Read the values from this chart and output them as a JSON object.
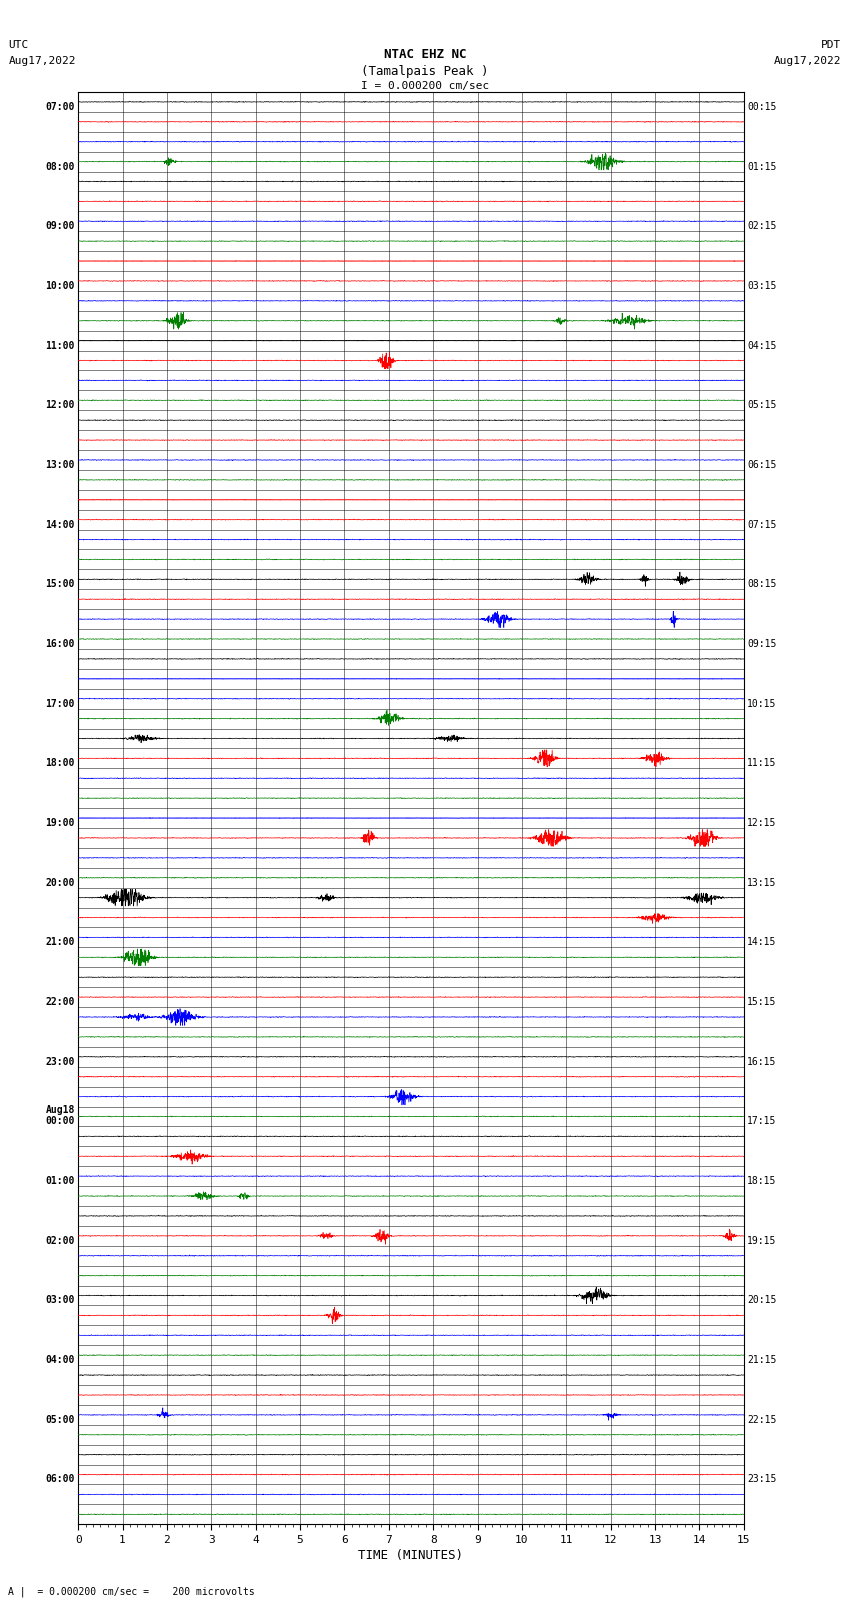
{
  "title_line1": "NTAC EHZ NC",
  "title_line2": "(Tamalpais Peak )",
  "title_line3": "I = 0.000200 cm/sec",
  "left_header_line1": "UTC",
  "left_header_line2": "Aug17,2022",
  "right_header_line1": "PDT",
  "right_header_line2": "Aug17,2022",
  "footer_text": "A |  = 0.000200 cm/sec =    200 microvolts",
  "xlabel": "TIME (MINUTES)",
  "utc_labels": [
    "07:00",
    "",
    "",
    "08:00",
    "",
    "",
    "09:00",
    "",
    "",
    "10:00",
    "",
    "",
    "11:00",
    "",
    "",
    "12:00",
    "",
    "",
    "13:00",
    "",
    "",
    "14:00",
    "",
    "",
    "15:00",
    "",
    "",
    "16:00",
    "",
    "",
    "17:00",
    "",
    "",
    "18:00",
    "",
    "",
    "19:00",
    "",
    "",
    "20:00",
    "",
    "",
    "21:00",
    "",
    "",
    "22:00",
    "",
    "",
    "23:00",
    "",
    "",
    "Aug18\n00:00",
    "",
    "",
    "01:00",
    "",
    "",
    "02:00",
    "",
    "",
    "03:00",
    "",
    "",
    "04:00",
    "",
    "",
    "05:00",
    "",
    "",
    "06:00",
    "",
    ""
  ],
  "pdt_labels": [
    "00:15",
    "",
    "",
    "01:15",
    "",
    "",
    "02:15",
    "",
    "",
    "03:15",
    "",
    "",
    "04:15",
    "",
    "",
    "05:15",
    "",
    "",
    "06:15",
    "",
    "",
    "07:15",
    "",
    "",
    "08:15",
    "",
    "",
    "09:15",
    "",
    "",
    "10:15",
    "",
    "",
    "11:15",
    "",
    "",
    "12:15",
    "",
    "",
    "13:15",
    "",
    "",
    "14:15",
    "",
    "",
    "15:15",
    "",
    "",
    "16:15",
    "",
    "",
    "17:15",
    "",
    "",
    "18:15",
    "",
    "",
    "19:15",
    "",
    "",
    "20:15",
    "",
    "",
    "21:15",
    "",
    "",
    "22:15",
    "",
    "",
    "23:15",
    "",
    ""
  ],
  "num_rows": 72,
  "xmin": 0,
  "xmax": 15,
  "colors_cycle": [
    "black",
    "red",
    "blue",
    "green"
  ],
  "bg_color": "#ffffff",
  "random_seed": 42,
  "saturated_rows": [
    8,
    12,
    20,
    29,
    36
  ],
  "saturated_colors": [
    "red",
    "black",
    "red",
    "blue",
    "blue"
  ],
  "noise_base": 0.012,
  "burst_prob": 0.35,
  "burst_amp_min": 0.05,
  "burst_amp_max": 0.35,
  "clip_val": 0.42
}
